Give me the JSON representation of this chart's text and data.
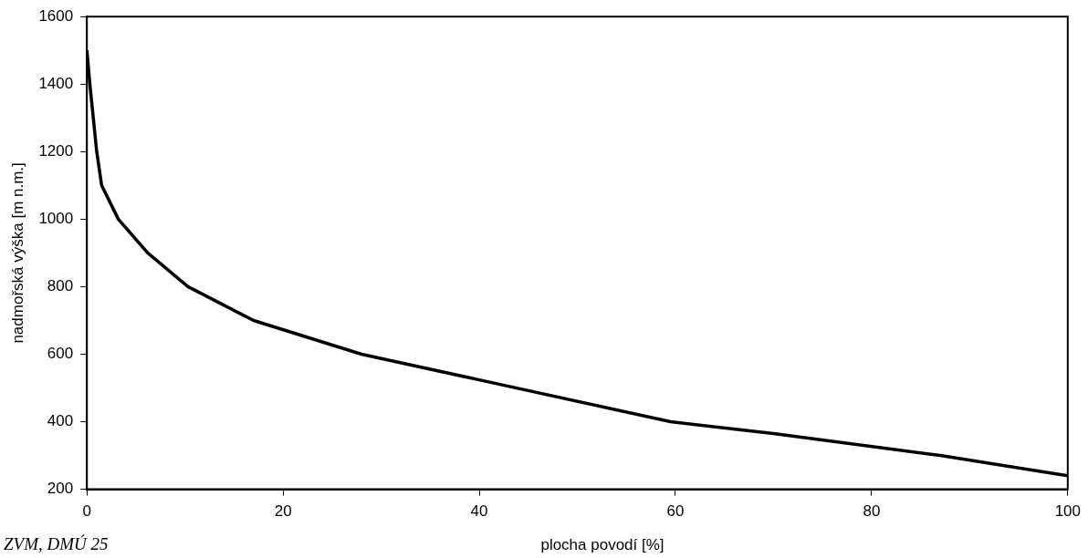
{
  "chart_data": {
    "type": "line",
    "xlabel": "plocha povodí [%]",
    "ylabel": "nadmořská výška [m n.m.]",
    "x": [
      0,
      0.3,
      1,
      1.5,
      3.2,
      6.2,
      10.3,
      17,
      28,
      40,
      59.5,
      70,
      87,
      100
    ],
    "series": [
      {
        "color": "#000000",
        "values": [
          1500,
          1400,
          1200,
          1100,
          1000,
          900,
          800,
          700,
          600,
          524,
          400,
          365,
          300,
          240
        ]
      }
    ],
    "xlim": [
      0,
      100
    ],
    "xticks": [
      0,
      20,
      40,
      60,
      80,
      100
    ],
    "ylim": [
      200,
      1600
    ],
    "yticks": [
      200,
      400,
      600,
      800,
      1000,
      1200,
      1400,
      1600
    ],
    "grid": false,
    "legend": false,
    "marker": "none",
    "line_style": "solid",
    "annotations": [
      "ZVM, DMÚ 25"
    ]
  }
}
